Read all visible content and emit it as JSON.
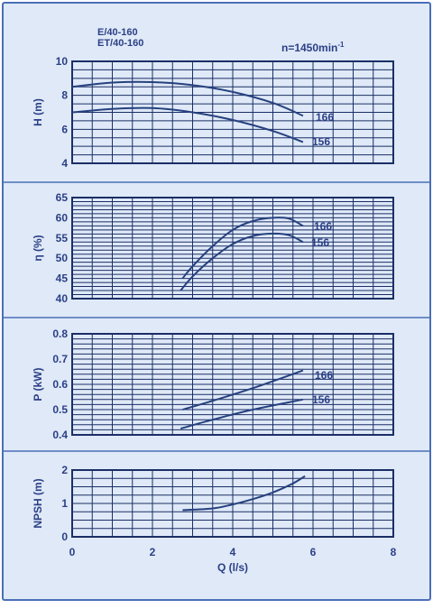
{
  "header": {
    "model_line1": "E/40-160",
    "model_line2": "ET/40-160",
    "speed_prefix": "n=1450min",
    "speed_exponent": "-1"
  },
  "colors": {
    "background": "#dfe9f7",
    "grid": "#1b2e66",
    "curve": "#26417f",
    "text": "#2b3f86",
    "frame": "#4a6fb8"
  },
  "chart_data": [
    {
      "type": "line",
      "ylabel": "H (m)",
      "xlim": [
        0,
        8
      ],
      "ylim": [
        4,
        10
      ],
      "yticks": [
        4,
        6,
        8,
        10
      ],
      "series": [
        {
          "name": "166",
          "x": [
            0,
            1,
            2,
            3,
            4,
            5,
            5.75
          ],
          "y": [
            8.5,
            8.75,
            8.78,
            8.6,
            8.2,
            7.55,
            6.8
          ]
        },
        {
          "name": "156",
          "x": [
            0,
            1,
            2,
            3,
            4,
            5,
            5.75
          ],
          "y": [
            7.0,
            7.2,
            7.25,
            7.0,
            6.55,
            5.9,
            5.25
          ]
        }
      ]
    },
    {
      "type": "line",
      "ylabel": "η (%)",
      "xlim": [
        0,
        8
      ],
      "ylim": [
        40,
        65
      ],
      "yticks": [
        40,
        45,
        50,
        55,
        60,
        65
      ],
      "series": [
        {
          "name": "166",
          "x": [
            2.75,
            3,
            3.5,
            4,
            4.5,
            5,
            5.4,
            5.75
          ],
          "y": [
            45,
            48,
            53,
            57,
            59.2,
            60,
            59.8,
            58
          ]
        },
        {
          "name": "156",
          "x": [
            2.7,
            3,
            3.5,
            4,
            4.5,
            5,
            5.4,
            5.75
          ],
          "y": [
            42,
            45.5,
            50,
            53.5,
            55.5,
            56.1,
            55.7,
            54
          ]
        }
      ]
    },
    {
      "type": "line",
      "ylabel": "P (kW)",
      "xlim": [
        0,
        8
      ],
      "ylim": [
        0.4,
        0.8
      ],
      "yticks": [
        0.4,
        0.5,
        0.6,
        0.7,
        0.8
      ],
      "series": [
        {
          "name": "166",
          "x": [
            2.75,
            3.5,
            4.5,
            5.75
          ],
          "y": [
            0.5,
            0.535,
            0.585,
            0.655
          ]
        },
        {
          "name": "156",
          "x": [
            2.7,
            3.5,
            4.5,
            5.75
          ],
          "y": [
            0.425,
            0.46,
            0.5,
            0.54
          ]
        }
      ]
    },
    {
      "type": "line",
      "ylabel": "NPSH (m)",
      "xlabel": "Q (l/s)",
      "xlim": [
        0,
        8
      ],
      "ylim": [
        0,
        2
      ],
      "yticks": [
        0,
        1,
        2
      ],
      "xticks": [
        0,
        2,
        4,
        6,
        8
      ],
      "series": [
        {
          "name": "",
          "x": [
            2.75,
            3.5,
            4,
            4.5,
            5,
            5.5,
            5.8
          ],
          "y": [
            0.8,
            0.85,
            0.97,
            1.13,
            1.33,
            1.6,
            1.82
          ]
        }
      ]
    }
  ]
}
